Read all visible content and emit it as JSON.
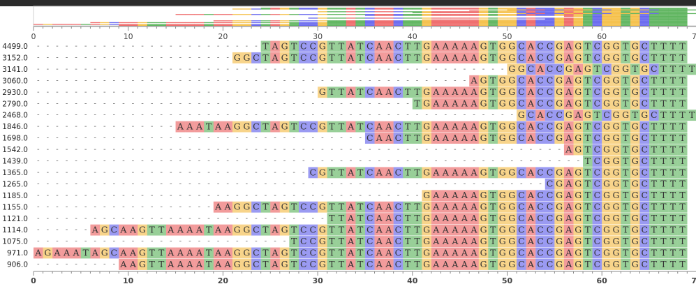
{
  "reference": "TAGTCCGTTATCAACTTGAAAAAGTGGCACCGAGTCGGTGCTTTT",
  "axis": {
    "min": 0,
    "max": 70,
    "ticks": [
      0,
      10,
      20,
      30,
      40,
      50,
      60,
      70
    ]
  },
  "colors": {
    "A": "#f29b9b",
    "C": "#9a9af2",
    "G": "#f8d48a",
    "T": "#98cf98",
    "line": "#e8a0a0"
  },
  "rows": [
    {
      "label": "4499.0",
      "start": 24,
      "seq": "TAGTCCGTTATCAACTTGAAAAAGTGGCACCGAGTCGGTGCTTTT"
    },
    {
      "label": "3152.0",
      "start": 21,
      "seq": "GGCTAGTCCGTTATCAACTTGAAAAAGTGGCACCGAGTCGGTGCTTTT"
    },
    {
      "label": "3141.0",
      "start": 50,
      "seq": "GGCACCGAGTCGGTGCTTTT"
    },
    {
      "label": "3060.0",
      "start": 46,
      "seq": "AGTGGCACCGAGTCGGTGCTTTT"
    },
    {
      "label": "2930.0",
      "start": 30,
      "seq": "GTTATCAACTTGAAAAAGTGGCACCGAGTCGGTGCTTTT"
    },
    {
      "label": "2790.0",
      "start": 40,
      "seq": "TGAAAAAGTGGCACCGAGTCGGTGCTTTT"
    },
    {
      "label": "2468.0",
      "start": 51,
      "seq": "GCACCGAGTCGGTGCTTTT"
    },
    {
      "label": "1846.0",
      "start": 15,
      "seq": "AAATAAGGCTAGTCCGTTATCAACTTGAAAAAGTGGCACCGAGTCGGTGCTTTT"
    },
    {
      "label": "1698.0",
      "start": 35,
      "seq": "CAACTTGAAAAAGTGGCACCGAGTCGGTGCTTTT"
    },
    {
      "label": "1542.0",
      "start": 56,
      "seq": "AGTCGGTGCTTTT"
    },
    {
      "label": "1439.0",
      "start": 58,
      "seq": "TCGGTGCTTTT"
    },
    {
      "label": "1365.0",
      "start": 29,
      "seq": "CGTTATCAACTTGAAAAAGTGGCACCGAGTCGGTGCTTTT"
    },
    {
      "label": "1265.0",
      "start": 54,
      "seq": "CGAGTCGGTGCTTTT"
    },
    {
      "label": "1185.0",
      "start": 41,
      "seq": "GAAAAAGTGGCACCGAGTCGGTGCTTTT"
    },
    {
      "label": "1155.0",
      "start": 19,
      "seq": "AAGGCTAGTCCGTTATCAACTTGAAAAAGTGGCACCGAGTCGGTGCTTTT"
    },
    {
      "label": "1121.0",
      "start": 31,
      "seq": "TTATCAACTTGAAAAAGTGGCACCGAGTCGGTGCTTTT"
    },
    {
      "label": "1114.0",
      "start": 6,
      "seq": "AGCAAGTTAAAATAAGGCTAGTCCGTTATCAACTTGAAAAAGTGGCACCGAGTCGGTGCTTTT"
    },
    {
      "label": "1075.0",
      "start": 27,
      "seq": "TCCGTTATCAACTTGAAAAAGTGGCACCGAGTCGGTGCTTTT"
    },
    {
      "label": "971.0",
      "start": 0,
      "seq": "AGAAATAGCAAGTTAAAATAAGGCTAGTCCGTTATCAACTTGAAAAAGTGGCACCGAGTCGGTGCTTTT"
    },
    {
      "label": "906.0",
      "start": 9,
      "seq": "AAGTTAAAATAAGGCTAGTCCGTTATCAACTTGAAAAAGTGGCACCGAGTCGGTGCTTTT"
    }
  ]
}
